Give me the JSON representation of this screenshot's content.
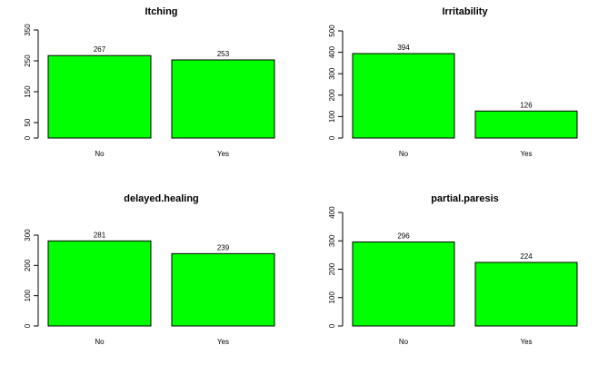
{
  "colors": {
    "bar_fill": "#00ff00",
    "bar_stroke": "#000000",
    "background": "#ffffff"
  },
  "chart_data": [
    {
      "type": "bar",
      "title": "Itching",
      "categories": [
        "No",
        "Yes"
      ],
      "values": [
        267,
        253
      ],
      "ylim": [
        0,
        350
      ],
      "yticks": [
        "0",
        "50",
        "150",
        "250",
        "350"
      ],
      "grid": false
    },
    {
      "type": "bar",
      "title": "Irritability",
      "categories": [
        "No",
        "Yes"
      ],
      "values": [
        394,
        126
      ],
      "ylim": [
        0,
        500
      ],
      "yticks": [
        "0",
        "100",
        "200",
        "300",
        "400",
        "500"
      ],
      "grid": false
    },
    {
      "type": "bar",
      "title": "delayed.healing",
      "categories": [
        "No",
        "Yes"
      ],
      "values": [
        281,
        239
      ],
      "ylim": [
        0,
        300
      ],
      "yticks": [
        "0",
        "100",
        "200",
        "300"
      ],
      "grid": false
    },
    {
      "type": "bar",
      "title": "partial.paresis",
      "categories": [
        "No",
        "Yes"
      ],
      "values": [
        296,
        224
      ],
      "ylim": [
        0,
        400
      ],
      "yticks": [
        "0",
        "100",
        "200",
        "300",
        "400"
      ],
      "grid": false
    }
  ]
}
